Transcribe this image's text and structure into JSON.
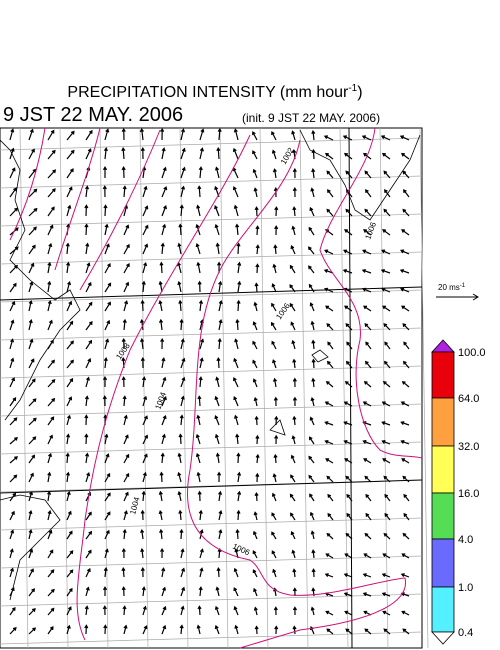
{
  "title": {
    "text": "PRECIPITATION INTENSITY (mm hour",
    "superscript": "-1",
    "close": ")"
  },
  "valid_time": "9 JST 22 MAY. 2006",
  "init_time": "(init. 9 JST 22 MAY. 2006)",
  "wind_scale": {
    "label": "20 ms",
    "superscript": "-1"
  },
  "colorbar": {
    "labels": [
      "100.0",
      "64.0",
      "32.0",
      "16.0",
      "4.0",
      "1.0",
      "0.4"
    ]
  },
  "contours": [
    {
      "label": "1002"
    },
    {
      "label": "1004"
    },
    {
      "label": "1006"
    },
    {
      "label": "1008"
    },
    {
      "label": "1004"
    },
    {
      "label": "1006"
    },
    {
      "label": "1006"
    }
  ]
}
